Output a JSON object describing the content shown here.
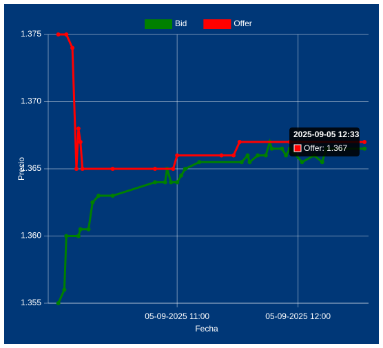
{
  "chart_data": {
    "type": "line",
    "x_label": "Fecha",
    "y_label": "Precio",
    "x": [
      "2025-09-05 10:01",
      "2025-09-05 10:04",
      "2025-09-05 10:05",
      "2025-09-05 10:08",
      "2025-09-05 10:10",
      "2025-09-05 10:11",
      "2025-09-05 10:12",
      "2025-09-05 10:13",
      "2025-09-05 10:16",
      "2025-09-05 10:18",
      "2025-09-05 10:21",
      "2025-09-05 10:28",
      "2025-09-05 10:49",
      "2025-09-05 10:54",
      "2025-09-05 10:55",
      "2025-09-05 10:57",
      "2025-09-05 10:58",
      "2025-09-05 11:00",
      "2025-09-05 11:02",
      "2025-09-05 11:04",
      "2025-09-05 11:11",
      "2025-09-05 11:22",
      "2025-09-05 11:28",
      "2025-09-05 11:31",
      "2025-09-05 11:32",
      "2025-09-05 11:35",
      "2025-09-05 11:36",
      "2025-09-05 11:40",
      "2025-09-05 11:44",
      "2025-09-05 11:46",
      "2025-09-05 11:47",
      "2025-09-05 11:52",
      "2025-09-05 11:54",
      "2025-09-05 11:56",
      "2025-09-05 12:02",
      "2025-09-05 12:08",
      "2025-09-05 12:12",
      "2025-09-05 12:14",
      "2025-09-05 12:33"
    ],
    "series": [
      {
        "name": "Bid",
        "color": "#008000",
        "values": [
          1.355,
          1.356,
          1.36,
          null,
          null,
          1.36,
          1.3605,
          null,
          1.3605,
          1.3625,
          1.363,
          1.363,
          1.364,
          1.364,
          1.365,
          1.364,
          null,
          1.364,
          1.3645,
          1.365,
          1.3655,
          null,
          null,
          null,
          1.3655,
          1.366,
          1.3655,
          1.366,
          1.366,
          1.367,
          1.3665,
          1.3665,
          1.366,
          1.3665,
          1.3655,
          1.366,
          1.3655,
          1.3665,
          1.3665
        ]
      },
      {
        "name": "Offer",
        "color": "#ff0000",
        "values": [
          1.375,
          null,
          1.375,
          1.374,
          1.365,
          1.368,
          1.367,
          1.365,
          null,
          null,
          null,
          1.365,
          1.365,
          null,
          null,
          null,
          1.365,
          1.366,
          null,
          null,
          null,
          1.366,
          1.366,
          1.367,
          null,
          null,
          null,
          null,
          null,
          null,
          null,
          null,
          null,
          1.367,
          null,
          null,
          null,
          null,
          1.367
        ]
      }
    ],
    "xlim": [
      "2025-09-05 09:56",
      "2025-09-05 12:35"
    ],
    "xticks": [
      {
        "value": "2025-09-05 11:00",
        "label": "05-09-2025 11:00"
      },
      {
        "value": "2025-09-05 12:00",
        "label": "05-09-2025 12:00"
      }
    ],
    "ylim": [
      1.355,
      1.375
    ],
    "yticks": [
      1.355,
      {
        "value": 1.36,
        "label": "1.360"
      },
      1.365,
      {
        "value": 1.37,
        "label": "1.370"
      },
      1.375
    ],
    "grid": true,
    "legend": "top",
    "tooltip": {
      "title": "2025-09-05 12:33",
      "label": "Offer: 1.367"
    }
  }
}
